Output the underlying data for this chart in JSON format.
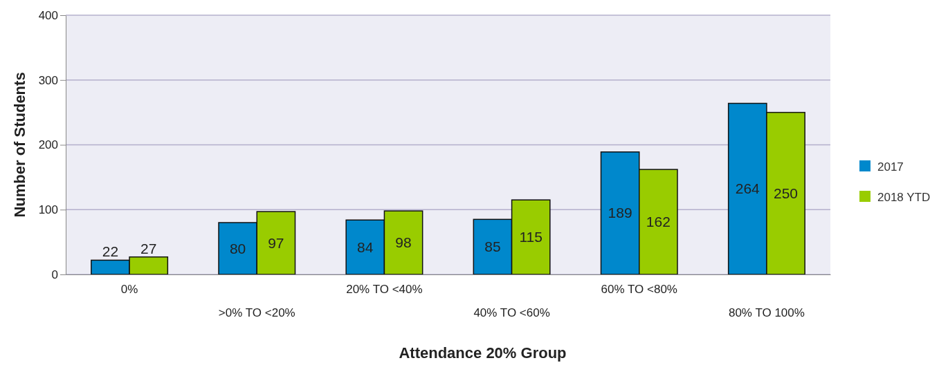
{
  "chart_data": {
    "type": "bar",
    "xlabel": "Attendance 20% Group",
    "ylabel": "Number of Students",
    "categories": [
      "0%",
      ">0% TO <20%",
      "20% TO <40%",
      "40% TO <60%",
      "60% TO <80%",
      "80% TO 100%"
    ],
    "series": [
      {
        "name": "2017",
        "color": "#0088cc",
        "values": [
          22,
          80,
          84,
          85,
          189,
          264
        ]
      },
      {
        "name": "2018 YTD",
        "color": "#99cc00",
        "values": [
          27,
          97,
          98,
          115,
          162,
          250
        ]
      }
    ],
    "ylim": [
      0,
      400
    ],
    "yticks": [
      0,
      100,
      200,
      300,
      400
    ],
    "grid": "y",
    "legend": "right",
    "data_labels": true
  }
}
